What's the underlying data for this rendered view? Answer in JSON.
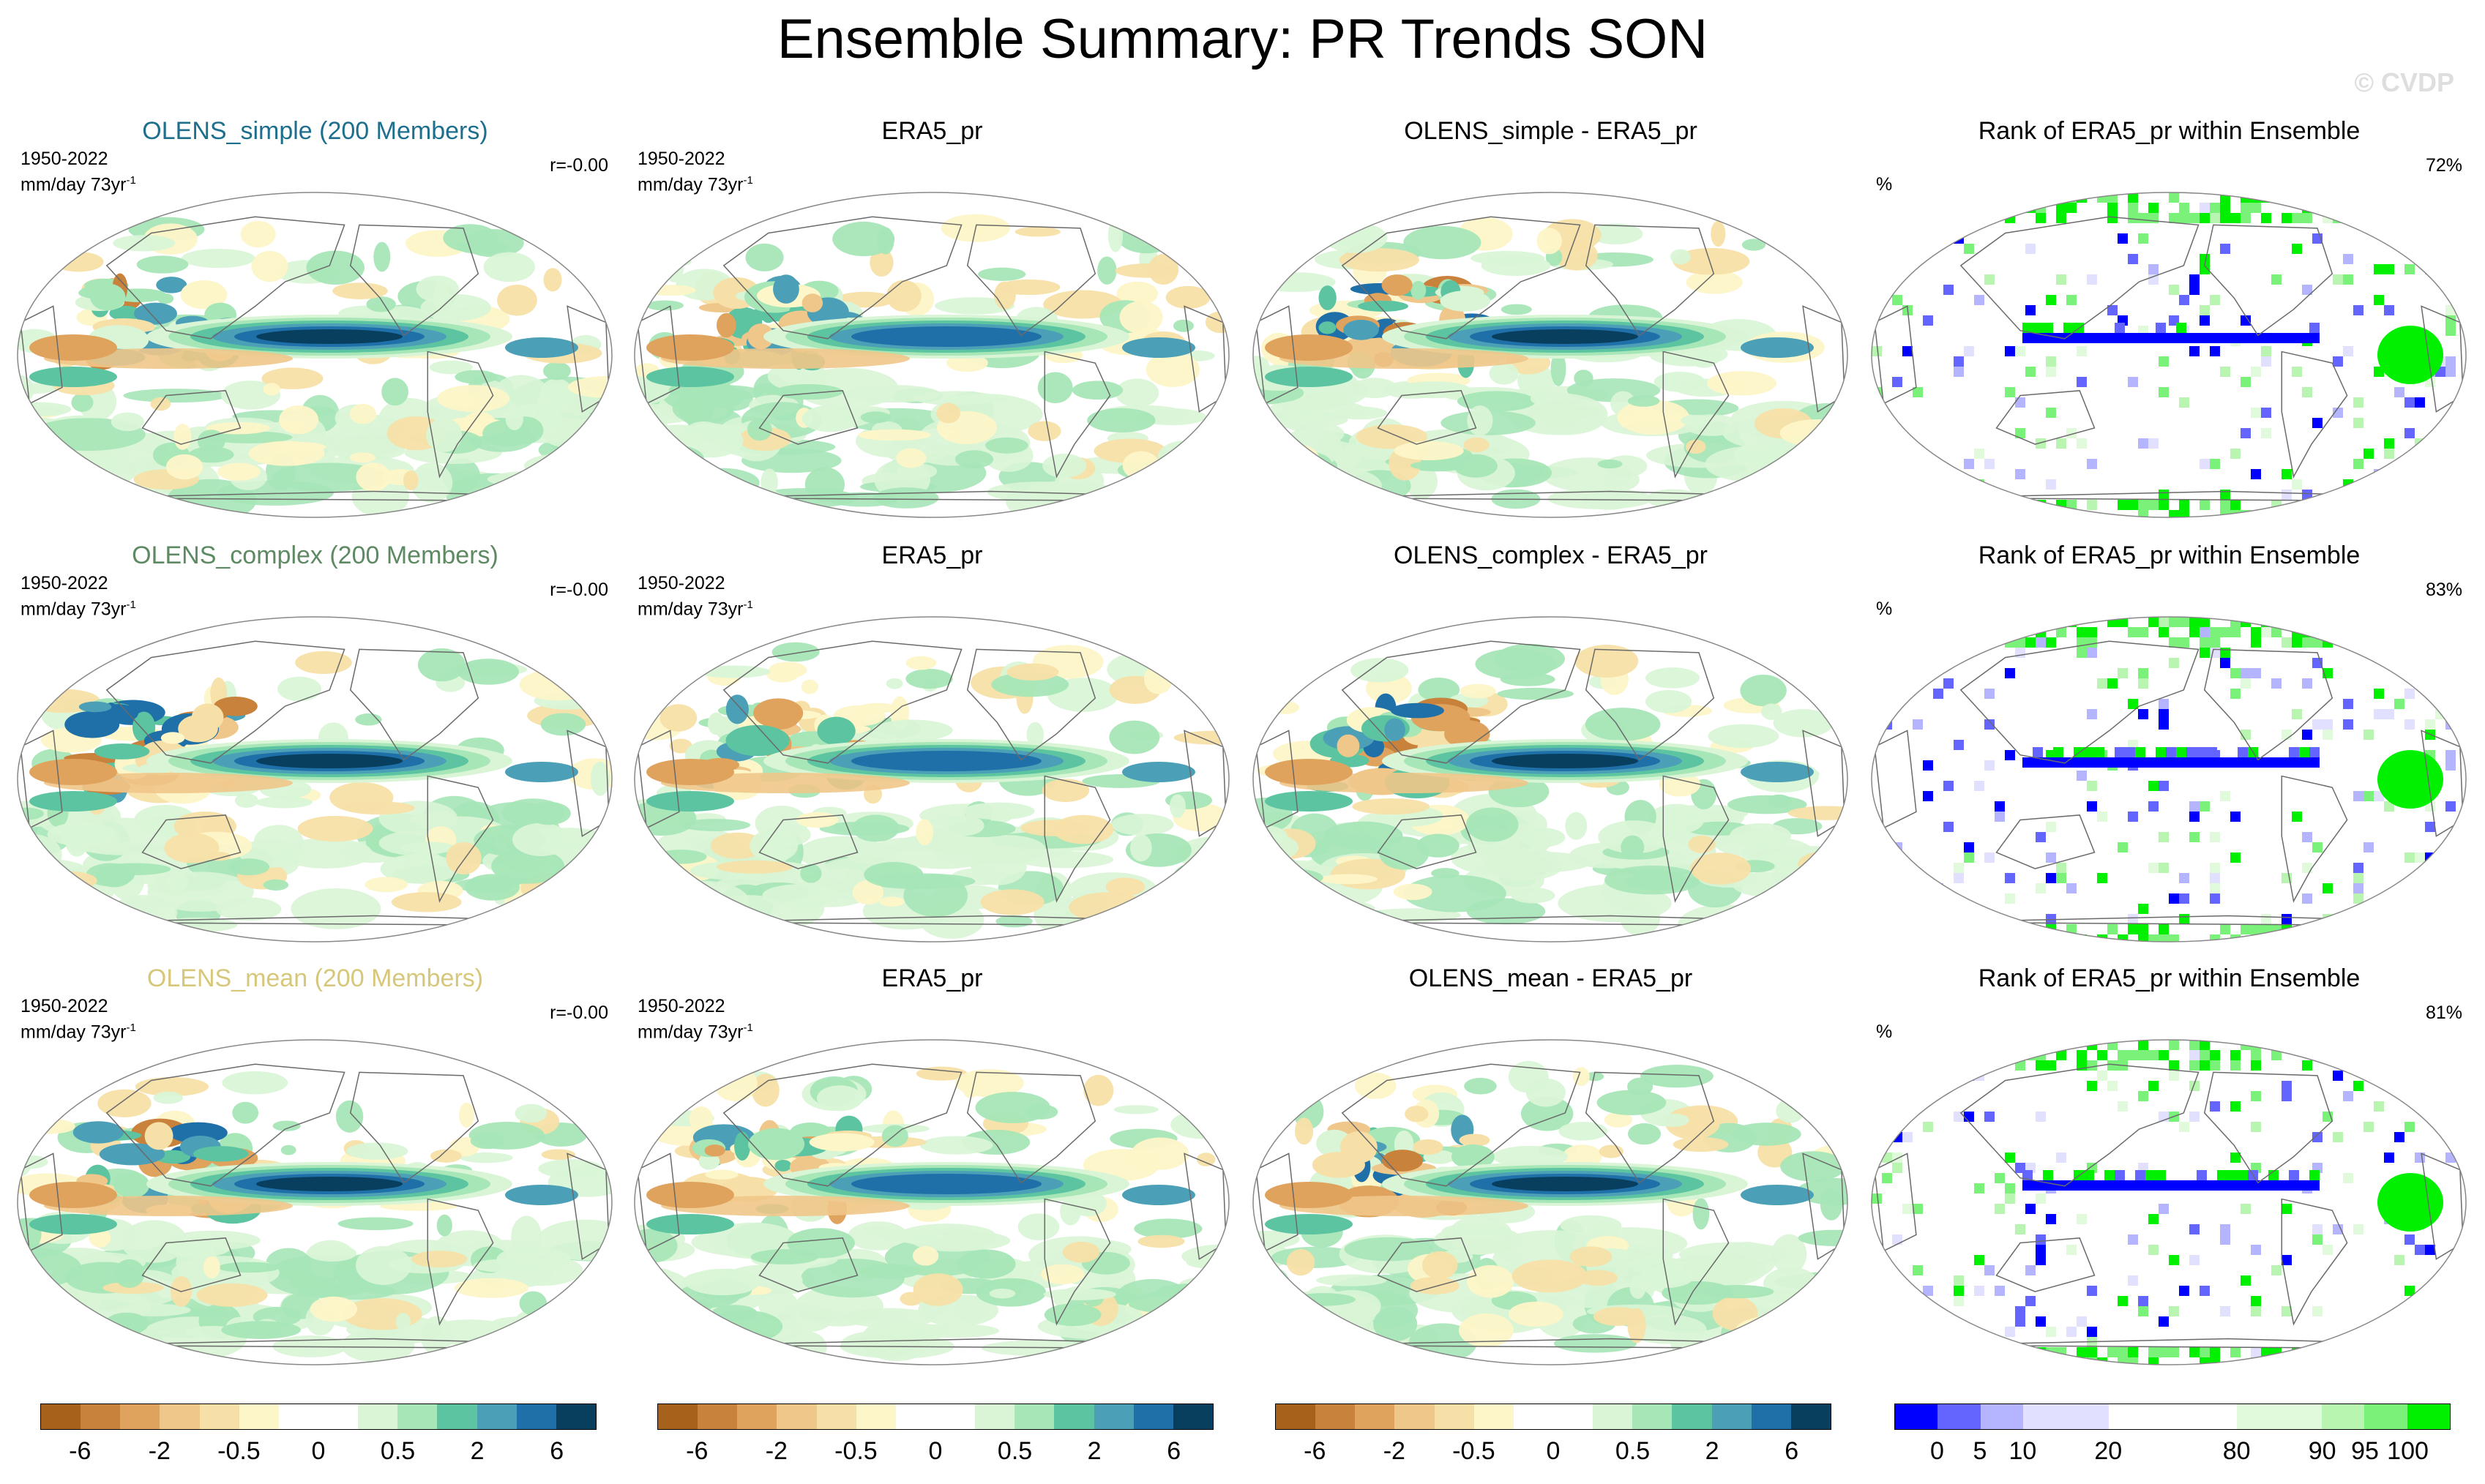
{
  "title": "Ensemble Summary: PR Trends SON",
  "watermark": "© CVDP",
  "rows": [
    {
      "ensemble": {
        "title": "OLENS_simple (200 Members)",
        "title_color": "#1e6f8e",
        "period": "1950-2022",
        "units": "mm/day 73yr",
        "units_sup": "-1",
        "corr": "r=-0.00"
      },
      "obs": {
        "title": "ERA5_pr",
        "period": "1950-2022",
        "units": "mm/day 73yr",
        "units_sup": "-1"
      },
      "diff": {
        "title": "OLENS_simple - ERA5_pr"
      },
      "rank": {
        "title": "Rank of ERA5_pr within Ensemble",
        "unit": "%",
        "percent": "72%"
      }
    },
    {
      "ensemble": {
        "title": "OLENS_complex (200 Members)",
        "title_color": "#5e8a63",
        "period": "1950-2022",
        "units": "mm/day 73yr",
        "units_sup": "-1",
        "corr": "r=-0.00"
      },
      "obs": {
        "title": "ERA5_pr",
        "period": "1950-2022",
        "units": "mm/day 73yr",
        "units_sup": "-1"
      },
      "diff": {
        "title": "OLENS_complex - ERA5_pr"
      },
      "rank": {
        "title": "Rank of ERA5_pr within Ensemble",
        "unit": "%",
        "percent": "83%"
      }
    },
    {
      "ensemble": {
        "title": "OLENS_mean (200 Members)",
        "title_color": "#d6c77a",
        "period": "1950-2022",
        "units": "mm/day 73yr",
        "units_sup": "-1",
        "corr": "r=-0.00"
      },
      "obs": {
        "title": "ERA5_pr",
        "period": "1950-2022",
        "units": "mm/day 73yr",
        "units_sup": "-1"
      },
      "diff": {
        "title": "OLENS_mean - ERA5_pr"
      },
      "rank": {
        "title": "Rank of ERA5_pr within Ensemble",
        "unit": "%",
        "percent": "81%"
      }
    }
  ],
  "colorbars": {
    "trend": {
      "colors": [
        "#a6611a",
        "#c8823c",
        "#dfa35e",
        "#efc78a",
        "#f7e0a8",
        "#fdf6c8",
        "#ffffff",
        "#ffffff",
        "#d9f5d6",
        "#a6e6b7",
        "#5cc4a0",
        "#4b9fb7",
        "#1f6fa8",
        "#083f5e"
      ],
      "labels": [
        "-6",
        "-2",
        "-0.5",
        "0",
        "0.5",
        "2",
        "6"
      ],
      "label_positions": [
        1,
        3,
        5,
        7,
        9,
        11,
        13
      ]
    },
    "rank": {
      "colors": [
        "#0000ff",
        "#6464ff",
        "#b4b4ff",
        "#e1e1ff",
        "#e1e1ff",
        "#ffffff",
        "#ffffff",
        "#ffffff",
        "#e0fadb",
        "#e0fadb",
        "#b8f5b0",
        "#7af27a",
        "#00f000"
      ],
      "labels": [
        "0",
        "5",
        "10",
        "20",
        "80",
        "90",
        "95",
        "100"
      ],
      "label_positions": [
        1,
        2,
        3,
        5,
        8,
        10,
        11,
        12
      ]
    }
  },
  "map_palette": {
    "land_line": "#6a6a6a",
    "wet": [
      "#d9f5d6",
      "#a6e6b7",
      "#5cc4a0",
      "#4b9fb7",
      "#1f6fa8",
      "#083f5e"
    ],
    "dry": [
      "#fdf6c8",
      "#f7e0a8",
      "#efc78a",
      "#dfa35e",
      "#c8823c",
      "#a6611a"
    ],
    "rank_blue": [
      "#0000ff",
      "#6464ff",
      "#b4b4ff",
      "#e1e1ff"
    ],
    "rank_green": [
      "#e0fadb",
      "#b8f5b0",
      "#7af27a",
      "#00f000"
    ]
  }
}
